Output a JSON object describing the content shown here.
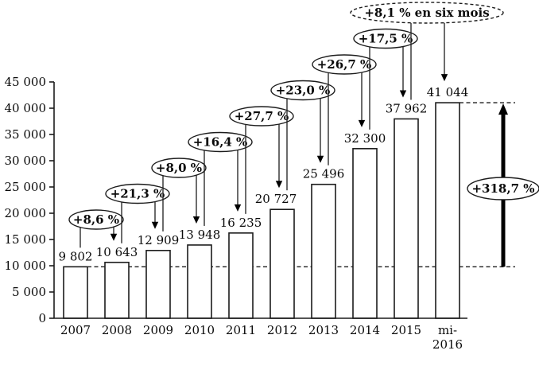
{
  "chart_data": {
    "type": "bar",
    "categories": [
      "2007",
      "2008",
      "2009",
      "2010",
      "2011",
      "2012",
      "2013",
      "2014",
      "2015",
      "mi-2016"
    ],
    "categories_lines": [
      [
        "2007"
      ],
      [
        "2008"
      ],
      [
        "2009"
      ],
      [
        "2010"
      ],
      [
        "2011"
      ],
      [
        "2012"
      ],
      [
        "2013"
      ],
      [
        "2014"
      ],
      [
        "2015"
      ],
      [
        "mi-",
        "2016"
      ]
    ],
    "values": [
      9802,
      10643,
      12909,
      13948,
      16235,
      20727,
      25496,
      32300,
      37962,
      41044
    ],
    "value_labels": [
      "9 802",
      "10 643",
      "12 909",
      "13 948",
      "16 235",
      "20 727",
      "25 496",
      "32 300",
      "37 962",
      "41 044"
    ],
    "ylim": [
      0,
      45000
    ],
    "ytick_step": 5000,
    "ytick_labels": [
      "0",
      "5 000",
      "10 000",
      "15 000",
      "20 000",
      "25 000",
      "30 000",
      "35 000",
      "40 000",
      "45 000"
    ],
    "grid": false,
    "legend": false,
    "growth_annotations": [
      {
        "label": "+8,6 %",
        "from": "2007",
        "to": "2008"
      },
      {
        "label": "+21,3 %",
        "from": "2008",
        "to": "2009"
      },
      {
        "label": "+8,0 %",
        "from": "2009",
        "to": "2010"
      },
      {
        "label": "+16,4 %",
        "from": "2010",
        "to": "2011"
      },
      {
        "label": "+27,7 %",
        "from": "2011",
        "to": "2012"
      },
      {
        "label": "+23,0 %",
        "from": "2012",
        "to": "2013"
      },
      {
        "label": "+26,7 %",
        "from": "2013",
        "to": "2014"
      },
      {
        "label": "+17,5 %",
        "from": "2014",
        "to": "2015"
      },
      {
        "label": "+8,1 % en six mois",
        "from": "2015",
        "to": "mi-2016",
        "dashed_border": true
      }
    ],
    "total_annotation": {
      "label": "+318,7 %",
      "from": "2007",
      "to": "mi-2016"
    },
    "dashed_guides": {
      "lower": 9802,
      "upper": 41044
    },
    "colors": {
      "bar_fill": "#ffffff",
      "stroke": "#1c1c1c",
      "text": "#0a0a0a"
    }
  }
}
